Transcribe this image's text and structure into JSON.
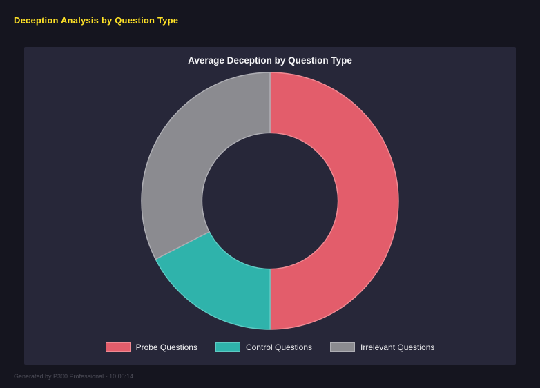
{
  "header": {
    "title": "Deception Analysis by Question Type",
    "color": "#ffe227"
  },
  "chart_data": {
    "type": "pie",
    "subtype": "donut",
    "title": "Average Deception by Question Type",
    "labels": [
      "Probe Questions",
      "Control Questions",
      "Irrelevant Questions"
    ],
    "values": [
      50,
      17.5,
      32.5
    ],
    "colors": [
      "#e35d6b",
      "#2fb3ab",
      "#8b8b90"
    ],
    "edge_colors": [
      "#ef8a93",
      "#5ecac3",
      "#aeaeb4"
    ],
    "start_angle_deg": 0,
    "direction": "clockwise",
    "inner_radius_ratio": 0.53,
    "legend_position": "bottom",
    "background": "#272739"
  },
  "footer": {
    "text": "Generated by P300 Professional - 10:05:14"
  }
}
